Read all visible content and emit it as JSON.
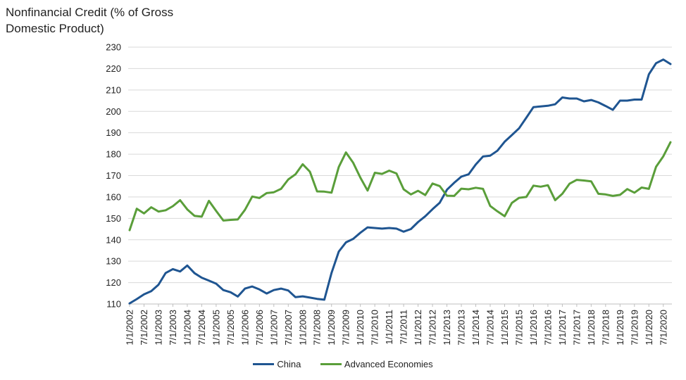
{
  "chart_data": {
    "type": "line",
    "title": "Nonfinancial Credit (% of Gross Domestic Product)",
    "ylim": [
      110,
      230
    ],
    "yticks": [
      110,
      120,
      130,
      140,
      150,
      160,
      170,
      180,
      190,
      200,
      210,
      220,
      230
    ],
    "grid": true,
    "legend_position": "bottom",
    "xtick_labels": [
      "1/1/2002",
      "7/1/2002",
      "1/1/2003",
      "7/1/2003",
      "1/1/2004",
      "7/1/2004",
      "1/1/2005",
      "7/1/2005",
      "1/1/2006",
      "7/1/2006",
      "1/1/2007",
      "7/1/2007",
      "1/1/2008",
      "7/1/2008",
      "1/1/2009",
      "7/1/2009",
      "1/1/2010",
      "7/1/2010",
      "1/1/2011",
      "7/1/2011",
      "1/1/2012",
      "7/1/2012",
      "1/1/2013",
      "7/1/2013",
      "1/1/2014",
      "7/1/2014",
      "1/1/2015",
      "7/1/2015",
      "1/1/2016",
      "7/1/2016",
      "1/1/2017",
      "7/1/2017",
      "1/1/2018",
      "7/1/2018",
      "1/1/2019",
      "7/1/2019",
      "1/1/2020",
      "7/1/2020"
    ],
    "x": [
      "2002Q1",
      "2002Q2",
      "2002Q3",
      "2002Q4",
      "2003Q1",
      "2003Q2",
      "2003Q3",
      "2003Q4",
      "2004Q1",
      "2004Q2",
      "2004Q3",
      "2004Q4",
      "2005Q1",
      "2005Q2",
      "2005Q3",
      "2005Q4",
      "2006Q1",
      "2006Q2",
      "2006Q3",
      "2006Q4",
      "2007Q1",
      "2007Q2",
      "2007Q3",
      "2007Q4",
      "2008Q1",
      "2008Q2",
      "2008Q3",
      "2008Q4",
      "2009Q1",
      "2009Q2",
      "2009Q3",
      "2009Q4",
      "2010Q1",
      "2010Q2",
      "2010Q3",
      "2010Q4",
      "2011Q1",
      "2011Q2",
      "2011Q3",
      "2011Q4",
      "2012Q1",
      "2012Q2",
      "2012Q3",
      "2012Q4",
      "2013Q1",
      "2013Q2",
      "2013Q3",
      "2013Q4",
      "2014Q1",
      "2014Q2",
      "2014Q3",
      "2014Q4",
      "2015Q1",
      "2015Q2",
      "2015Q3",
      "2015Q4",
      "2016Q1",
      "2016Q2",
      "2016Q3",
      "2016Q4",
      "2017Q1",
      "2017Q2",
      "2017Q3",
      "2017Q4",
      "2018Q1",
      "2018Q2",
      "2018Q3",
      "2018Q4",
      "2019Q1",
      "2019Q2",
      "2019Q3",
      "2019Q4",
      "2020Q1",
      "2020Q2",
      "2020Q3",
      "2020Q4"
    ],
    "series": [
      {
        "name": "China",
        "color": "#1f5591",
        "values": [
          110.3,
          112.3,
          114.5,
          116.0,
          119.0,
          124.5,
          126.3,
          125.2,
          128.0,
          124.4,
          122.3,
          120.9,
          119.5,
          116.5,
          115.5,
          113.5,
          117.2,
          118.2,
          116.8,
          114.9,
          116.5,
          117.2,
          116.3,
          113.2,
          113.6,
          113.0,
          112.4,
          112.0,
          124.5,
          134.5,
          138.8,
          140.4,
          143.3,
          145.8,
          145.5,
          145.2,
          145.5,
          145.2,
          143.8,
          145.0,
          148.3,
          151.0,
          154.3,
          157.3,
          163.4,
          166.6,
          169.5,
          170.6,
          175.2,
          178.9,
          179.3,
          181.6,
          185.8,
          188.9,
          192.1,
          197.0,
          202.0,
          202.3,
          202.6,
          203.3,
          206.5,
          206.0,
          206.0,
          204.7,
          205.3,
          204.2,
          202.5,
          200.7,
          205.0,
          205.0,
          205.5,
          205.5,
          217.3,
          222.5,
          224.2,
          222.1
        ]
      },
      {
        "name": "Advanced Economies",
        "color": "#5a9e3a",
        "values": [
          144.5,
          154.5,
          152.3,
          155.2,
          153.2,
          153.8,
          155.7,
          158.5,
          154.2,
          151.2,
          150.8,
          158.2,
          153.5,
          149.0,
          149.3,
          149.5,
          154.0,
          160.2,
          159.5,
          161.8,
          162.2,
          163.8,
          168.2,
          170.6,
          175.3,
          171.8,
          162.6,
          162.5,
          162.0,
          174.0,
          180.8,
          176.0,
          169.0,
          163.0,
          171.3,
          170.8,
          172.3,
          171.0,
          163.6,
          161.2,
          162.9,
          160.9,
          166.3,
          165.1,
          160.6,
          160.5,
          163.9,
          163.6,
          164.3,
          163.8,
          155.8,
          153.3,
          151.0,
          157.2,
          159.6,
          160.0,
          165.3,
          164.8,
          165.5,
          158.5,
          161.5,
          166.2,
          168.0,
          167.7,
          167.3,
          161.5,
          161.2,
          160.5,
          161.0,
          163.7,
          162.0,
          164.4,
          163.8,
          174.1,
          179.0,
          185.6
        ]
      }
    ]
  }
}
